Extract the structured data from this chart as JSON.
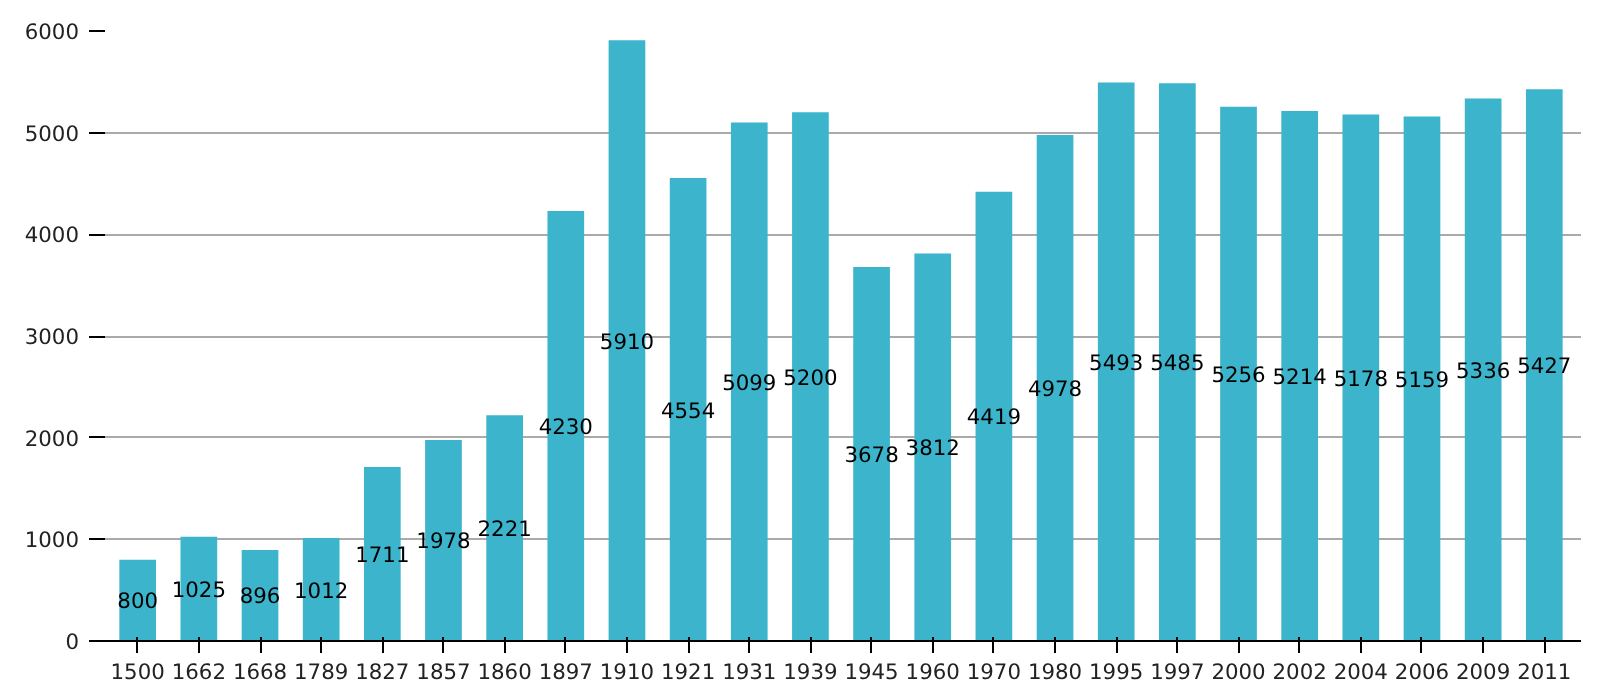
{
  "chart_data": {
    "type": "bar",
    "categories": [
      "1500",
      "1662",
      "1668",
      "1789",
      "1827",
      "1857",
      "1860",
      "1897",
      "1910",
      "1921",
      "1931",
      "1939",
      "1945",
      "1960",
      "1970",
      "1980",
      "1995",
      "1997",
      "2000",
      "2002",
      "2004",
      "2006",
      "2009",
      "2011"
    ],
    "values": [
      800,
      1025,
      896,
      1012,
      1711,
      1978,
      2221,
      4230,
      5910,
      4554,
      5099,
      5200,
      3678,
      3812,
      4419,
      4978,
      5493,
      5485,
      5256,
      5214,
      5178,
      5159,
      5336,
      5427
    ],
    "color": "#3cb4cb",
    "ylim": [
      0,
      6000
    ],
    "yticks": [
      0,
      1000,
      2000,
      3000,
      4000,
      5000,
      6000
    ],
    "grid": "y",
    "data_labels": true
  }
}
